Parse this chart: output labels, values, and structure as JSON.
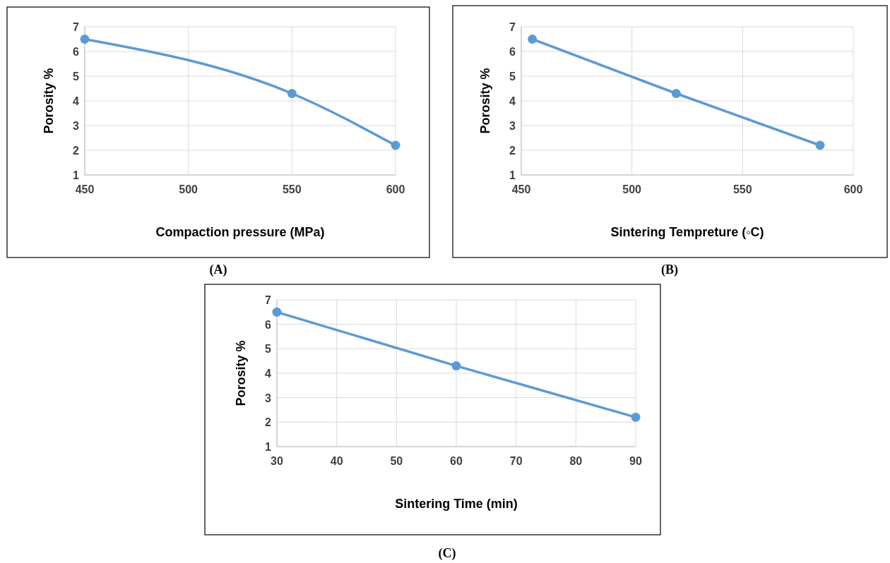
{
  "chart_data": [
    {
      "type": "line",
      "xlabel": "Compaction pressure (MPa)",
      "ylabel": "Porosity %",
      "x": [
        450,
        550,
        600
      ],
      "series": [
        {
          "color": "#5b9bd5",
          "values": [
            6.5,
            4.3,
            2.2
          ]
        }
      ],
      "xlim": [
        450,
        600
      ],
      "xticks": [
        450,
        500,
        550,
        600
      ],
      "ylim": [
        1,
        7
      ],
      "yticks": [
        1,
        2,
        3,
        4,
        5,
        6,
        7
      ],
      "grid": true,
      "marker": "circle",
      "annotations": [
        "(A)"
      ]
    },
    {
      "type": "line",
      "xlabel": "Sintering Tempreture (◦C)",
      "ylabel": "Porosity %",
      "x": [
        455,
        520,
        585
      ],
      "series": [
        {
          "color": "#5b9bd5",
          "values": [
            6.5,
            4.3,
            2.2
          ]
        }
      ],
      "xlim": [
        450,
        600
      ],
      "xticks": [
        450,
        500,
        550,
        600
      ],
      "ylim": [
        1,
        7
      ],
      "yticks": [
        1,
        2,
        3,
        4,
        5,
        6,
        7
      ],
      "grid": true,
      "marker": "circle",
      "annotations": [
        "(B)"
      ]
    },
    {
      "type": "line",
      "xlabel": "Sintering Time (min)",
      "ylabel": "Porosity %",
      "x": [
        30,
        60,
        90
      ],
      "series": [
        {
          "color": "#5b9bd5",
          "values": [
            6.5,
            4.3,
            2.2
          ]
        }
      ],
      "xlim": [
        30,
        90
      ],
      "xticks": [
        30,
        40,
        50,
        60,
        70,
        80,
        90
      ],
      "ylim": [
        1,
        7
      ],
      "yticks": [
        1,
        2,
        3,
        4,
        5,
        6,
        7
      ],
      "grid": true,
      "marker": "circle",
      "annotations": [
        "(C)"
      ]
    }
  ]
}
